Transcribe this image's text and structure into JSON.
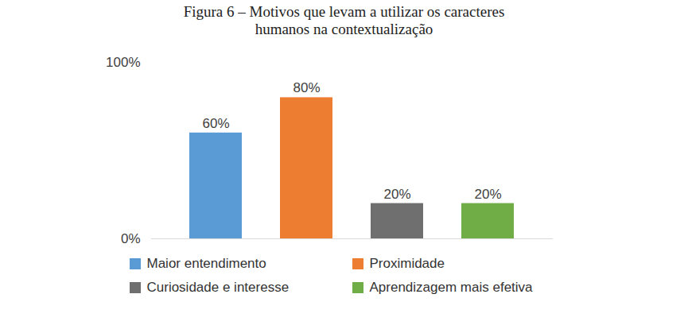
{
  "chart_data": {
    "type": "bar",
    "title": "Figura 6 – Motivos que levam a utilizar os caracteres humanos na contextualização",
    "categories": [
      "Maior entendimento",
      "Proximidade",
      "Curiosidade e interesse",
      "Aprendizagem mais efetiva"
    ],
    "values": [
      60,
      80,
      20,
      20
    ],
    "value_labels": [
      "60%",
      "80%",
      "20%",
      "20%"
    ],
    "colors": [
      "#5b9bd5",
      "#ed7d31",
      "#6f6f6f",
      "#70ad47"
    ],
    "ylim": [
      0,
      100
    ],
    "yticks": [
      {
        "value": 0,
        "label": "0%"
      },
      {
        "value": 100,
        "label": "100%"
      }
    ],
    "grid": false,
    "legend": "bottom",
    "data_labels": true,
    "tick_labels": "y"
  }
}
